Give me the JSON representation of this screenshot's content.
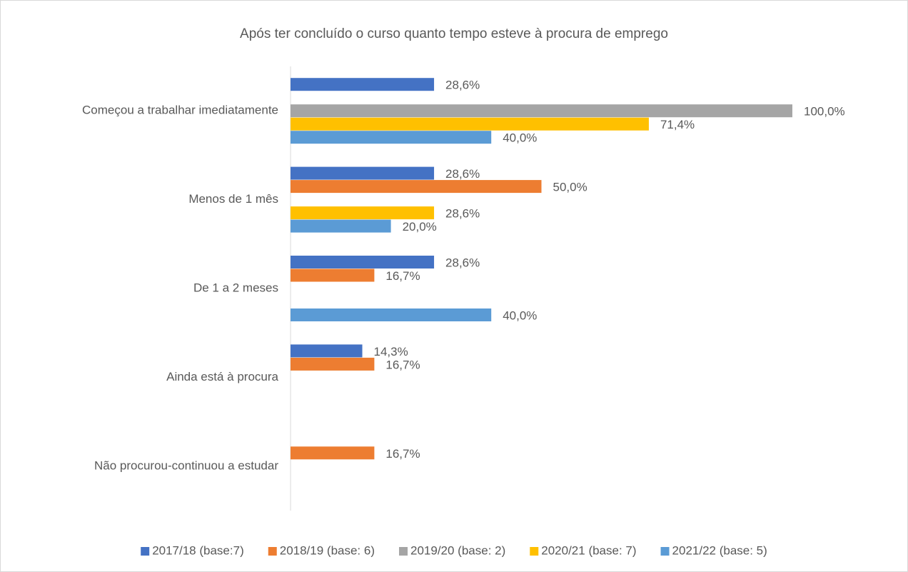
{
  "chart_data": {
    "type": "bar",
    "orientation": "horizontal",
    "title": "Após ter concluído o curso quanto tempo esteve à procura de emprego",
    "categories": [
      "Começou a trabalhar imediatamente",
      "Menos de 1 mês",
      "De 1 a 2 meses",
      "Ainda está à procura",
      "Não procurou-continuou a estudar"
    ],
    "xlim": [
      0,
      100
    ],
    "legend": "bottom",
    "series": [
      {
        "name": "2017/18 (base:7)",
        "color": "#4472c4",
        "values": [
          28.6,
          28.6,
          28.6,
          14.3,
          null
        ],
        "value_labels": [
          "28,6%",
          "28,6%",
          "28,6%",
          "14,3%",
          null
        ]
      },
      {
        "name": "2018/19 (base: 6)",
        "color": "#ed7d31",
        "values": [
          null,
          50.0,
          16.7,
          16.7,
          16.7
        ],
        "value_labels": [
          null,
          "50,0%",
          "16,7%",
          "16,7%",
          "16,7%"
        ]
      },
      {
        "name": "2019/20 (base: 2)",
        "color": "#a5a5a5",
        "values": [
          100.0,
          null,
          null,
          null,
          null
        ],
        "value_labels": [
          "100,0%",
          null,
          null,
          null,
          null
        ]
      },
      {
        "name": "2020/21 (base: 7)",
        "color": "#ffc000",
        "values": [
          71.4,
          28.6,
          null,
          null,
          null
        ],
        "value_labels": [
          "71,4%",
          "28,6%",
          null,
          null,
          null
        ]
      },
      {
        "name": "2021/22 (base: 5)",
        "color": "#5b9bd5",
        "values": [
          40.0,
          20.0,
          40.0,
          null,
          null
        ],
        "value_labels": [
          "40,0%",
          "20,0%",
          "40,0%",
          null,
          null
        ]
      }
    ]
  }
}
